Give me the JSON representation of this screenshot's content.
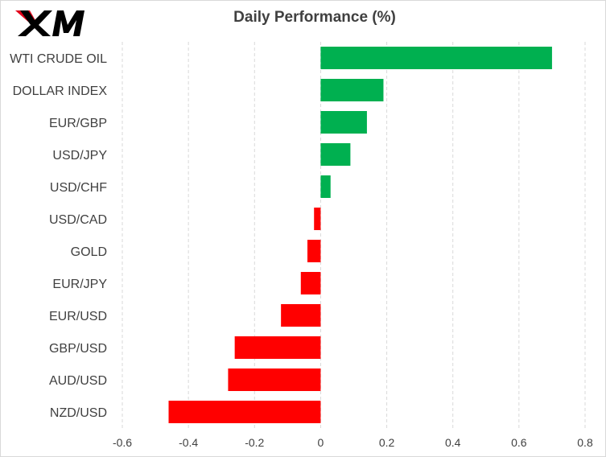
{
  "brand": {
    "logo_text": "XM",
    "logo_color": "#000000",
    "accent_color": "#e2001a"
  },
  "chart_data": {
    "type": "bar",
    "orientation": "horizontal",
    "title": "Daily Performance  (%)",
    "categories": [
      "WTI CRUDE OIL",
      "DOLLAR INDEX",
      "EUR/GBP",
      "USD/JPY",
      "USD/CHF",
      "USD/CAD",
      "GOLD",
      "EUR/JPY",
      "EUR/USD",
      "GBP/USD",
      "AUD/USD",
      "NZD/USD"
    ],
    "values": [
      0.7,
      0.19,
      0.14,
      0.09,
      0.03,
      -0.02,
      -0.04,
      -0.06,
      -0.12,
      -0.26,
      -0.28,
      -0.46
    ],
    "xlim": [
      -0.6,
      0.8
    ],
    "xticks": [
      "-0.6",
      "-0.4",
      "-0.2",
      "0",
      "0.2",
      "0.4",
      "0.6",
      "0.8"
    ],
    "xtick_values": [
      -0.6,
      -0.4,
      -0.2,
      0,
      0.2,
      0.4,
      0.6,
      0.8
    ],
    "grid": "vertical dashed",
    "positive_color": "#00b050",
    "negative_color": "#ff0000",
    "grid_color": "#d9d9d9"
  }
}
